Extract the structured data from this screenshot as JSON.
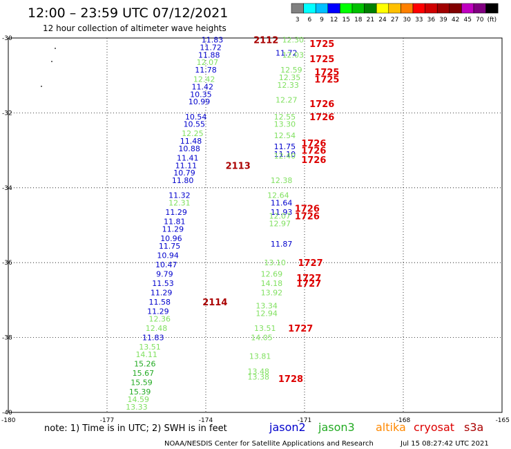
{
  "header": {
    "title": "12:00 – 23:59 UTC 07/12/2021",
    "subtitle": "12 hour collection of altimeter wave heights"
  },
  "color_scale": {
    "labels": [
      "3",
      "6",
      "9",
      "12",
      "15",
      "18",
      "21",
      "24",
      "27",
      "30",
      "33",
      "36",
      "39",
      "42",
      "45",
      "70",
      "(ft)"
    ],
    "colors": [
      "#808080",
      "#00ffff",
      "#00c0ff",
      "#0000ff",
      "#00ff00",
      "#00c000",
      "#008000",
      "#ffff00",
      "#ffc000",
      "#ff8000",
      "#ff0000",
      "#d00000",
      "#a00000",
      "#800000",
      "#c000c0",
      "#800080",
      "#000000"
    ]
  },
  "colors": {
    "jason2": "#0000cc",
    "jason3": "#22aa22",
    "jason3_light": "#80e060",
    "altika": "#ff8800",
    "cryosat": "#dd0000",
    "s3a": "#aa0000"
  },
  "note": "note:  1) Time is in UTC; 2) SWH is in feet",
  "satellites": [
    {
      "name": "jason2",
      "color": "#0000cc"
    },
    {
      "name": "jason3",
      "color": "#22aa22"
    },
    {
      "name": "altika",
      "color": "#ff8800"
    },
    {
      "name": "cryosat",
      "color": "#dd0000"
    },
    {
      "name": "s3a",
      "color": "#aa0000"
    }
  ],
  "footer": {
    "credit": "NOAA/NESDIS Center for Satellite Applications and Research",
    "timestamp": "Jul 15 08:27:42 UTC 2021"
  },
  "chart_data": {
    "type": "scatter",
    "title": "12:00 – 23:59 UTC 07/12/2021",
    "subtitle": "12 hour collection of altimeter wave heights",
    "xlabel": "",
    "ylabel": "",
    "xlim": [
      -180,
      -165
    ],
    "ylim": [
      -40,
      -30
    ],
    "grid": true,
    "x_ticks": [
      "-180",
      "-177",
      "-174",
      "-171",
      "-168",
      "-165"
    ],
    "y_ticks": [
      "-30",
      "-32",
      "-34",
      "-36",
      "-38",
      "-40"
    ],
    "series": [
      {
        "name": "jason2",
        "color": "#0000cc",
        "points": [
          {
            "lon": -173.8,
            "lat": -30.05,
            "swh": "11.83"
          },
          {
            "lon": -173.85,
            "lat": -30.25,
            "swh": "11.72"
          },
          {
            "lon": -173.9,
            "lat": -30.45,
            "swh": "11.88"
          },
          {
            "lon": -174.0,
            "lat": -30.85,
            "swh": "11.78"
          },
          {
            "lon": -174.1,
            "lat": -31.3,
            "swh": "11.42"
          },
          {
            "lon": -174.15,
            "lat": -31.5,
            "swh": "10.35"
          },
          {
            "lon": -174.2,
            "lat": -31.7,
            "swh": "10.99"
          },
          {
            "lon": -174.3,
            "lat": -32.1,
            "swh": "10.54"
          },
          {
            "lon": -174.35,
            "lat": -32.3,
            "swh": "10.55"
          },
          {
            "lon": -174.45,
            "lat": -32.75,
            "swh": "11.48"
          },
          {
            "lon": -174.5,
            "lat": -32.95,
            "swh": "10.88"
          },
          {
            "lon": -174.55,
            "lat": -33.2,
            "swh": "11.41"
          },
          {
            "lon": -174.6,
            "lat": -33.4,
            "swh": "11.11"
          },
          {
            "lon": -174.65,
            "lat": -33.6,
            "swh": "10.79"
          },
          {
            "lon": -174.7,
            "lat": -33.8,
            "swh": "11.80"
          },
          {
            "lon": -174.8,
            "lat": -34.2,
            "swh": "11.32"
          },
          {
            "lon": -174.9,
            "lat": -34.65,
            "swh": "11.29"
          },
          {
            "lon": -174.95,
            "lat": -34.9,
            "swh": "11.81"
          },
          {
            "lon": -175.0,
            "lat": -35.1,
            "swh": "11.29"
          },
          {
            "lon": -175.05,
            "lat": -35.35,
            "swh": "10.96"
          },
          {
            "lon": -175.1,
            "lat": -35.55,
            "swh": "11.75"
          },
          {
            "lon": -175.15,
            "lat": -35.8,
            "swh": "10.94"
          },
          {
            "lon": -175.2,
            "lat": -36.05,
            "swh": "10.47"
          },
          {
            "lon": -175.25,
            "lat": -36.3,
            "swh": "9.79"
          },
          {
            "lon": -175.3,
            "lat": -36.55,
            "swh": "11.53"
          },
          {
            "lon": -175.35,
            "lat": -36.8,
            "swh": "11.29"
          },
          {
            "lon": -175.4,
            "lat": -37.05,
            "swh": "11.58"
          },
          {
            "lon": -175.45,
            "lat": -37.3,
            "swh": "11.29"
          },
          {
            "lon": -175.6,
            "lat": -38.0,
            "swh": "11.83"
          },
          {
            "lon": -171.55,
            "lat": -30.4,
            "swh": "11.72"
          },
          {
            "lon": -171.6,
            "lat": -32.9,
            "swh": "11.75"
          },
          {
            "lon": -171.6,
            "lat": -33.1,
            "swh": "11.10"
          },
          {
            "lon": -171.7,
            "lat": -34.4,
            "swh": "11.64"
          },
          {
            "lon": -171.7,
            "lat": -34.65,
            "swh": "11.93"
          },
          {
            "lon": -171.7,
            "lat": -35.5,
            "swh": "11.87"
          }
        ]
      },
      {
        "name": "jason3",
        "color": "#22aa22",
        "points": [
          {
            "lon": -173.95,
            "lat": -30.65,
            "swh": "12.07"
          },
          {
            "lon": -174.05,
            "lat": -31.1,
            "swh": "12.42"
          },
          {
            "lon": -174.4,
            "lat": -32.55,
            "swh": "12.25"
          },
          {
            "lon": -174.8,
            "lat": -34.4,
            "swh": "12.31"
          },
          {
            "lon": -175.4,
            "lat": -37.5,
            "swh": "12.36"
          },
          {
            "lon": -175.5,
            "lat": -37.75,
            "swh": "12.48"
          },
          {
            "lon": -175.7,
            "lat": -38.25,
            "swh": "13.51"
          },
          {
            "lon": -175.8,
            "lat": -38.45,
            "swh": "14.11"
          },
          {
            "lon": -175.85,
            "lat": -38.7,
            "swh": "15.26"
          },
          {
            "lon": -175.9,
            "lat": -38.95,
            "swh": "15.67"
          },
          {
            "lon": -175.95,
            "lat": -39.2,
            "swh": "15.59"
          },
          {
            "lon": -176.0,
            "lat": -39.45,
            "swh": "15.39"
          },
          {
            "lon": -176.05,
            "lat": -39.65,
            "swh": "14.59"
          },
          {
            "lon": -176.1,
            "lat": -39.85,
            "swh": "13.33"
          },
          {
            "lon": -171.35,
            "lat": -30.05,
            "swh": "12.30"
          },
          {
            "lon": -171.35,
            "lat": -30.45,
            "swh": "12.03"
          },
          {
            "lon": -171.4,
            "lat": -30.85,
            "swh": "12.59"
          },
          {
            "lon": -171.45,
            "lat": -31.05,
            "swh": "12.35"
          },
          {
            "lon": -171.5,
            "lat": -31.25,
            "swh": "12.33"
          },
          {
            "lon": -171.55,
            "lat": -31.65,
            "swh": "12.27"
          },
          {
            "lon": -171.6,
            "lat": -32.1,
            "swh": "12.55"
          },
          {
            "lon": -171.6,
            "lat": -32.3,
            "swh": "13.30"
          },
          {
            "lon": -171.6,
            "lat": -32.6,
            "swh": "12.54"
          },
          {
            "lon": -171.6,
            "lat": -33.15,
            "swh": "12.40"
          },
          {
            "lon": -171.7,
            "lat": -33.8,
            "swh": "12.38"
          },
          {
            "lon": -171.8,
            "lat": -34.2,
            "swh": "12.64"
          },
          {
            "lon": -171.75,
            "lat": -34.75,
            "swh": "12.07"
          },
          {
            "lon": -171.75,
            "lat": -34.95,
            "swh": "12.97"
          },
          {
            "lon": -171.9,
            "lat": -36.0,
            "swh": "13.10"
          },
          {
            "lon": -172.0,
            "lat": -36.3,
            "swh": "12.69"
          },
          {
            "lon": -172.0,
            "lat": -36.55,
            "swh": "14.18"
          },
          {
            "lon": -172.0,
            "lat": -36.8,
            "swh": "13.92"
          },
          {
            "lon": -172.15,
            "lat": -37.15,
            "swh": "13.34"
          },
          {
            "lon": -172.15,
            "lat": -37.35,
            "swh": "12.94"
          },
          {
            "lon": -172.2,
            "lat": -37.75,
            "swh": "13.51"
          },
          {
            "lon": -172.3,
            "lat": -38.0,
            "swh": "14.05"
          },
          {
            "lon": -172.35,
            "lat": -38.5,
            "swh": "13.81"
          },
          {
            "lon": -172.4,
            "lat": -38.9,
            "swh": "13.48"
          },
          {
            "lon": -172.4,
            "lat": -39.05,
            "swh": "13.38"
          }
        ]
      }
    ],
    "time_labels": [
      {
        "text": "2112",
        "lon": -172.55,
        "lat": -30.05,
        "color": "#aa0000"
      },
      {
        "text": "1725",
        "lon": -170.85,
        "lat": -30.15,
        "color": "#dd0000"
      },
      {
        "text": "1725",
        "lon": -170.85,
        "lat": -30.55,
        "color": "#dd0000"
      },
      {
        "text": "1725",
        "lon": -170.7,
        "lat": -30.9,
        "color": "#dd0000"
      },
      {
        "text": "1725",
        "lon": -170.7,
        "lat": -31.1,
        "color": "#dd0000"
      },
      {
        "text": "1726",
        "lon": -170.85,
        "lat": -31.75,
        "color": "#dd0000"
      },
      {
        "text": "1726",
        "lon": -170.85,
        "lat": -32.1,
        "color": "#dd0000"
      },
      {
        "text": "1726",
        "lon": -171.1,
        "lat": -32.8,
        "color": "#dd0000"
      },
      {
        "text": "1726",
        "lon": -171.1,
        "lat": -33.0,
        "color": "#dd0000"
      },
      {
        "text": "1726",
        "lon": -171.1,
        "lat": -33.25,
        "color": "#dd0000"
      },
      {
        "text": "2113",
        "lon": -173.4,
        "lat": -33.4,
        "color": "#aa0000"
      },
      {
        "text": "1726",
        "lon": -171.3,
        "lat": -34.55,
        "color": "#dd0000"
      },
      {
        "text": "1726",
        "lon": -171.3,
        "lat": -34.75,
        "color": "#dd0000"
      },
      {
        "text": "1727",
        "lon": -171.2,
        "lat": -36.0,
        "color": "#dd0000"
      },
      {
        "text": "1727",
        "lon": -171.25,
        "lat": -36.4,
        "color": "#dd0000"
      },
      {
        "text": "1727",
        "lon": -171.25,
        "lat": -36.55,
        "color": "#dd0000"
      },
      {
        "text": "2114",
        "lon": -174.1,
        "lat": -37.05,
        "color": "#aa0000"
      },
      {
        "text": "1727",
        "lon": -171.5,
        "lat": -37.75,
        "color": "#dd0000"
      },
      {
        "text": "1728",
        "lon": -171.8,
        "lat": -39.1,
        "color": "#dd0000"
      }
    ]
  }
}
